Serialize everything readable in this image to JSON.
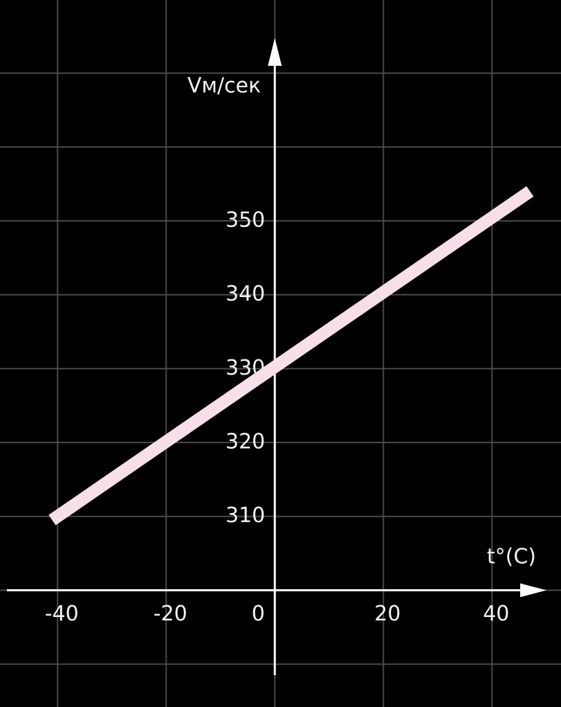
{
  "chart_data": {
    "type": "line",
    "x_label": "t°(C)",
    "y_label": "Vм/сек",
    "x": [
      -41,
      47
    ],
    "series": [
      {
        "color": "#f6dfe9",
        "values": [
          309.5,
          354
        ]
      }
    ],
    "xlim": [
      -50.6,
      52.7
    ],
    "ylim": [
      284.2,
      379.9
    ],
    "xticks": [
      -40,
      -20,
      0,
      20,
      40
    ],
    "yticks": [
      310,
      320,
      330,
      340,
      350
    ],
    "ygrid": [
      290,
      300,
      310,
      320,
      330,
      340,
      350,
      360,
      370
    ],
    "xaxis_y": 300,
    "yaxis_x": 0,
    "grid": true
  }
}
